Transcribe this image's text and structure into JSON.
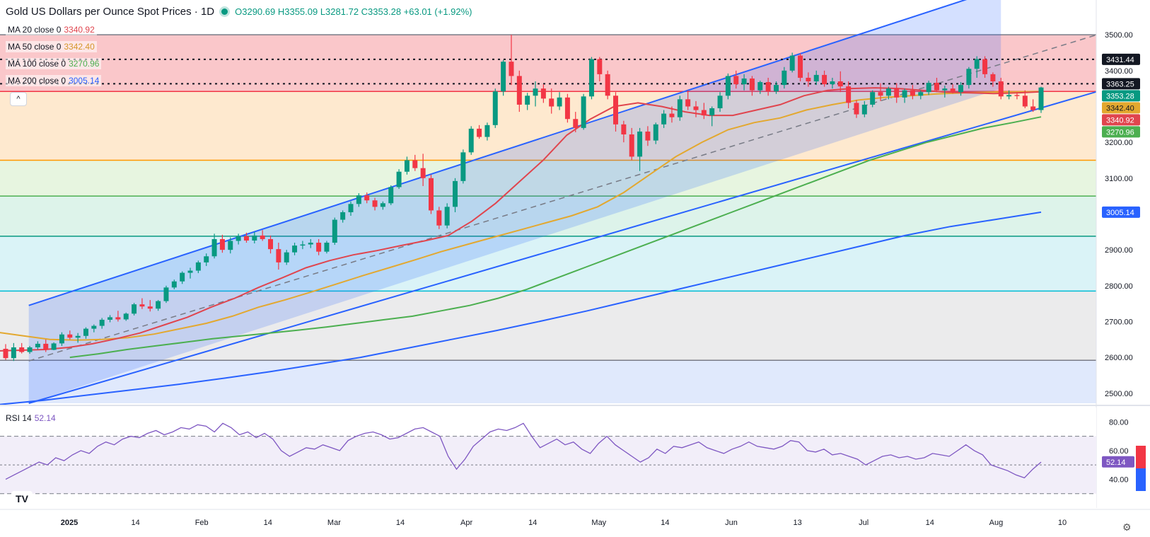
{
  "header": {
    "title": "Gold US Dollars per Ounce Spot Prices · 1D",
    "ohlc": "O3290.69 H3355.09 L3281.72 C3353.28 +63.01 (+1.92%)"
  },
  "indicators": [
    {
      "label": "MA 20 close 0",
      "value": "3340.92",
      "color": "#e0454e"
    },
    {
      "label": "MA 50 close 0",
      "value": "3342.40",
      "color": "#e3a82f"
    },
    {
      "label": "MA 100 close 0",
      "value": "3270.96",
      "color": "#4caf50"
    },
    {
      "label": "MA 200 close 0",
      "value": "3005.14",
      "color": "#2962ff"
    }
  ],
  "rsi": {
    "label": "RSI 14",
    "value": "52.14"
  },
  "icons": {
    "collapse": "chevron-up-icon",
    "logo": "tradingview-logo-icon",
    "settings": "gear-icon"
  },
  "ui_text": {
    "collapse_glyph": "^",
    "logo_text": "TV",
    "settings_glyph": "⚙"
  },
  "colors": {
    "up": "#089981",
    "down": "#f23645",
    "ma20": "#e0454e",
    "ma50": "#e3a82f",
    "ma100": "#4caf50",
    "ma200": "#2962ff",
    "rsi": "#7e57c2",
    "channel": "#2962ff"
  },
  "chart_data": {
    "type": "candlestick",
    "price_axis": {
      "ticks": [
        "3500.00",
        "3400.00",
        "3300.00",
        "3200.00",
        "3100.00",
        "3000.00",
        "2900.00",
        "2800.00",
        "2700.00",
        "2600.00",
        "2500.00"
      ],
      "range": [
        2472,
        3597
      ]
    },
    "price_labels": [
      {
        "text": "3431.44",
        "value": 3431.44,
        "bg": "#131722",
        "fg": "#ffffff"
      },
      {
        "text": "3363.25",
        "value": 3363.25,
        "bg": "#131722",
        "fg": "#ffffff"
      },
      {
        "text": "3353.28",
        "value": 3353.28,
        "bg": "#089981",
        "fg": "#ffffff"
      },
      {
        "text": "3342.40",
        "value": 3342.4,
        "bg": "#e3a82f",
        "fg": "#131722"
      },
      {
        "text": "3340.92",
        "value": 3340.92,
        "bg": "#e0454e",
        "fg": "#ffffff"
      },
      {
        "text": "3270.96",
        "value": 3270.96,
        "bg": "#4caf50",
        "fg": "#ffffff"
      },
      {
        "text": "3005.14",
        "value": 3005.14,
        "bg": "#2962ff",
        "fg": "#ffffff"
      }
    ],
    "time_axis": {
      "labels": [
        "2025",
        "14",
        "Feb",
        "14",
        "Mar",
        "14",
        "Apr",
        "14",
        "May",
        "14",
        "Jun",
        "13",
        "Jul",
        "14",
        "Aug",
        "10"
      ],
      "bold": [
        "2025"
      ]
    },
    "fib_levels": [
      3500,
      3342,
      3150,
      3050,
      2938,
      2785,
      2592
    ],
    "zones": [
      {
        "from": 3500,
        "to": 3342,
        "color": "#f8b4b8"
      },
      {
        "from": 3342,
        "to": 3150,
        "color": "#fde1bf"
      },
      {
        "from": 3150,
        "to": 3050,
        "color": "#dff1d6"
      },
      {
        "from": 3050,
        "to": 2938,
        "color": "#d1efe3"
      },
      {
        "from": 2938,
        "to": 2785,
        "color": "#cdeff4"
      },
      {
        "from": 2785,
        "to": 2592,
        "color": "#e4e4e6"
      },
      {
        "from": 2592,
        "to": 2472,
        "color": "#d6e2fb"
      }
    ],
    "zone_line_colors": [
      "#787b86",
      "#f23645",
      "#ff9800",
      "#4caf50",
      "#089981",
      "#00bcd4",
      "#787b86"
    ],
    "dotted_levels": [
      3431.44,
      3363.25
    ],
    "candles": [
      [
        2624,
        2637,
        2593,
        2598
      ],
      [
        2598,
        2640,
        2590,
        2628
      ],
      [
        2628,
        2640,
        2611,
        2615
      ],
      [
        2615,
        2632,
        2610,
        2628
      ],
      [
        2628,
        2645,
        2622,
        2638
      ],
      [
        2638,
        2650,
        2615,
        2621
      ],
      [
        2621,
        2642,
        2620,
        2639
      ],
      [
        2639,
        2670,
        2632,
        2664
      ],
      [
        2664,
        2675,
        2650,
        2655
      ],
      [
        2655,
        2668,
        2641,
        2660
      ],
      [
        2660,
        2684,
        2652,
        2680
      ],
      [
        2680,
        2692,
        2670,
        2688
      ],
      [
        2688,
        2710,
        2680,
        2705
      ],
      [
        2705,
        2718,
        2698,
        2712
      ],
      [
        2712,
        2730,
        2700,
        2706
      ],
      [
        2706,
        2725,
        2702,
        2722
      ],
      [
        2722,
        2752,
        2717,
        2748
      ],
      [
        2748,
        2765,
        2735,
        2742
      ],
      [
        2742,
        2760,
        2728,
        2736
      ],
      [
        2736,
        2760,
        2730,
        2757
      ],
      [
        2757,
        2800,
        2752,
        2795
      ],
      [
        2795,
        2817,
        2790,
        2812
      ],
      [
        2812,
        2840,
        2805,
        2836
      ],
      [
        2836,
        2850,
        2820,
        2842
      ],
      [
        2842,
        2870,
        2835,
        2865
      ],
      [
        2865,
        2890,
        2855,
        2882
      ],
      [
        2882,
        2945,
        2876,
        2930
      ],
      [
        2930,
        2942,
        2892,
        2900
      ],
      [
        2900,
        2935,
        2890,
        2925
      ],
      [
        2925,
        2945,
        2915,
        2938
      ],
      [
        2938,
        2948,
        2920,
        2926
      ],
      [
        2926,
        2950,
        2918,
        2940
      ],
      [
        2940,
        2955,
        2925,
        2930
      ],
      [
        2930,
        2940,
        2890,
        2902
      ],
      [
        2902,
        2920,
        2845,
        2865
      ],
      [
        2865,
        2900,
        2858,
        2893
      ],
      [
        2893,
        2920,
        2885,
        2912
      ],
      [
        2912,
        2925,
        2902,
        2915
      ],
      [
        2915,
        2930,
        2905,
        2920
      ],
      [
        2920,
        2930,
        2885,
        2895
      ],
      [
        2895,
        2925,
        2890,
        2920
      ],
      [
        2920,
        2990,
        2914,
        2984
      ],
      [
        2984,
        3010,
        2976,
        3005
      ],
      [
        3005,
        3035,
        2995,
        3028
      ],
      [
        3028,
        3058,
        3020,
        3052
      ],
      [
        3052,
        3060,
        3030,
        3038
      ],
      [
        3038,
        3045,
        3010,
        3020
      ],
      [
        3020,
        3035,
        3012,
        3030
      ],
      [
        3030,
        3080,
        3025,
        3075
      ],
      [
        3075,
        3125,
        3070,
        3118
      ],
      [
        3118,
        3160,
        3110,
        3150
      ],
      [
        3150,
        3165,
        3120,
        3128
      ],
      [
        3128,
        3168,
        3078,
        3100
      ],
      [
        3100,
        3110,
        3000,
        3010
      ],
      [
        3010,
        3020,
        2958,
        2968
      ],
      [
        2968,
        3030,
        2960,
        3020
      ],
      [
        3020,
        3100,
        3005,
        3092
      ],
      [
        3092,
        3180,
        3085,
        3172
      ],
      [
        3172,
        3245,
        3165,
        3238
      ],
      [
        3238,
        3248,
        3210,
        3215
      ],
      [
        3215,
        3255,
        3205,
        3248
      ],
      [
        3248,
        3350,
        3240,
        3342
      ],
      [
        3342,
        3430,
        3330,
        3425
      ],
      [
        3425,
        3500,
        3360,
        3385
      ],
      [
        3385,
        3400,
        3285,
        3305
      ],
      [
        3305,
        3338,
        3290,
        3330
      ],
      [
        3330,
        3370,
        3300,
        3350
      ],
      [
        3350,
        3362,
        3310,
        3322
      ],
      [
        3322,
        3350,
        3280,
        3300
      ],
      [
        3300,
        3340,
        3290,
        3325
      ],
      [
        3325,
        3335,
        3255,
        3265
      ],
      [
        3265,
        3285,
        3228,
        3240
      ],
      [
        3240,
        3335,
        3235,
        3328
      ],
      [
        3328,
        3438,
        3320,
        3432
      ],
      [
        3432,
        3438,
        3370,
        3390
      ],
      [
        3390,
        3400,
        3320,
        3330
      ],
      [
        3330,
        3340,
        3230,
        3250
      ],
      [
        3250,
        3260,
        3200,
        3222
      ],
      [
        3222,
        3240,
        3150,
        3160
      ],
      [
        3160,
        3240,
        3120,
        3230
      ],
      [
        3230,
        3245,
        3190,
        3205
      ],
      [
        3205,
        3255,
        3195,
        3250
      ],
      [
        3250,
        3290,
        3240,
        3280
      ],
      [
        3280,
        3300,
        3255,
        3270
      ],
      [
        3270,
        3330,
        3260,
        3320
      ],
      [
        3320,
        3345,
        3290,
        3300
      ],
      [
        3300,
        3315,
        3270,
        3290
      ],
      [
        3290,
        3310,
        3265,
        3275
      ],
      [
        3275,
        3300,
        3245,
        3295
      ],
      [
        3295,
        3340,
        3285,
        3330
      ],
      [
        3330,
        3392,
        3320,
        3385
      ],
      [
        3385,
        3400,
        3350,
        3362
      ],
      [
        3362,
        3390,
        3345,
        3378
      ],
      [
        3378,
        3385,
        3330,
        3345
      ],
      [
        3345,
        3372,
        3335,
        3368
      ],
      [
        3368,
        3380,
        3330,
        3342
      ],
      [
        3342,
        3370,
        3335,
        3360
      ],
      [
        3360,
        3410,
        3350,
        3400
      ],
      [
        3400,
        3450,
        3395,
        3442
      ],
      [
        3442,
        3448,
        3370,
        3380
      ],
      [
        3380,
        3395,
        3355,
        3370
      ],
      [
        3370,
        3400,
        3360,
        3388
      ],
      [
        3388,
        3400,
        3355,
        3362
      ],
      [
        3362,
        3380,
        3350,
        3370
      ],
      [
        3370,
        3398,
        3340,
        3356
      ],
      [
        3356,
        3370,
        3295,
        3310
      ],
      [
        3310,
        3318,
        3268,
        3278
      ],
      [
        3278,
        3315,
        3270,
        3305
      ],
      [
        3305,
        3345,
        3298,
        3340
      ],
      [
        3340,
        3365,
        3315,
        3330
      ],
      [
        3330,
        3355,
        3320,
        3350
      ],
      [
        3350,
        3365,
        3310,
        3325
      ],
      [
        3325,
        3350,
        3310,
        3345
      ],
      [
        3345,
        3360,
        3320,
        3330
      ],
      [
        3330,
        3345,
        3320,
        3340
      ],
      [
        3340,
        3372,
        3332,
        3366
      ],
      [
        3366,
        3380,
        3340,
        3345
      ],
      [
        3345,
        3358,
        3325,
        3350
      ],
      [
        3350,
        3362,
        3336,
        3340
      ],
      [
        3340,
        3368,
        3330,
        3360
      ],
      [
        3360,
        3410,
        3350,
        3405
      ],
      [
        3405,
        3440,
        3380,
        3432
      ],
      [
        3432,
        3440,
        3380,
        3390
      ],
      [
        3390,
        3395,
        3355,
        3370
      ],
      [
        3370,
        3380,
        3320,
        3328
      ],
      [
        3328,
        3345,
        3320,
        3332
      ],
      [
        3332,
        3340,
        3320,
        3330
      ],
      [
        3330,
        3345,
        3295,
        3300
      ],
      [
        3300,
        3320,
        3285,
        3290
      ],
      [
        3290,
        3355,
        3282,
        3353
      ]
    ],
    "ma_series": {
      "ma20": [
        2618,
        2620,
        2622,
        2628,
        2638,
        2652,
        2668,
        2690,
        2712,
        2740,
        2765,
        2795,
        2822,
        2850,
        2870,
        2886,
        2898,
        2912,
        2925,
        2940,
        2980,
        3030,
        3090,
        3150,
        3220,
        3265,
        3300,
        3310,
        3300,
        3285,
        3275,
        3275,
        3290,
        3305,
        3330,
        3345,
        3350,
        3352,
        3350,
        3345,
        3340,
        3338,
        3336,
        3338,
        3341
      ],
      "ma50": [
        2670,
        2660,
        2650,
        2648,
        2650,
        2655,
        2665,
        2680,
        2695,
        2715,
        2740,
        2760,
        2782,
        2805,
        2828,
        2850,
        2872,
        2895,
        2915,
        2935,
        2955,
        2975,
        2995,
        3020,
        3060,
        3110,
        3160,
        3200,
        3235,
        3255,
        3268,
        3290,
        3305,
        3318,
        3325,
        3330,
        3335,
        3338,
        3340,
        3341,
        3342
      ],
      "ma100": [
        2600,
        2610,
        2622,
        2632,
        2642,
        2652,
        2660,
        2668,
        2676,
        2685,
        2695,
        2705,
        2715,
        2730,
        2745,
        2765,
        2790,
        2820,
        2850,
        2880,
        2910,
        2940,
        2970,
        3000,
        3030,
        3060,
        3090,
        3120,
        3150,
        3175,
        3200,
        3220,
        3240,
        3255,
        3271
      ],
      "ma200": [
        2468,
        2480,
        2495,
        2510,
        2525,
        2542,
        2560,
        2580,
        2600,
        2625,
        2650,
        2675,
        2702,
        2730,
        2760,
        2790,
        2820,
        2850,
        2880,
        2910,
        2940,
        2965,
        2985,
        3005
      ]
    },
    "rsi": {
      "axis_ticks": [
        "80.00",
        "60.00",
        "40.00"
      ],
      "levels": [
        70,
        50,
        30
      ],
      "values": [
        40,
        43,
        46,
        49,
        52,
        50,
        55,
        53,
        57,
        60,
        58,
        63,
        66,
        64,
        68,
        70,
        69,
        72,
        74,
        71,
        73,
        76,
        75,
        78,
        77,
        73,
        79,
        76,
        71,
        73,
        69,
        72,
        68,
        60,
        56,
        59,
        62,
        61,
        64,
        62,
        60,
        67,
        70,
        72,
        73,
        71,
        68,
        69,
        72,
        75,
        76,
        73,
        70,
        56,
        47,
        54,
        63,
        68,
        73,
        75,
        74,
        76,
        79,
        70,
        62,
        65,
        68,
        64,
        66,
        61,
        58,
        65,
        70,
        64,
        60,
        56,
        52,
        55,
        61,
        58,
        63,
        62,
        64,
        66,
        62,
        60,
        58,
        61,
        63,
        66,
        63,
        62,
        61,
        63,
        67,
        66,
        60,
        59,
        61,
        57,
        58,
        56,
        54,
        50,
        53,
        56,
        57,
        55,
        56,
        54,
        55,
        58,
        57,
        56,
        60,
        64,
        60,
        57,
        50,
        48,
        46,
        43,
        41,
        47,
        52
      ]
    }
  }
}
